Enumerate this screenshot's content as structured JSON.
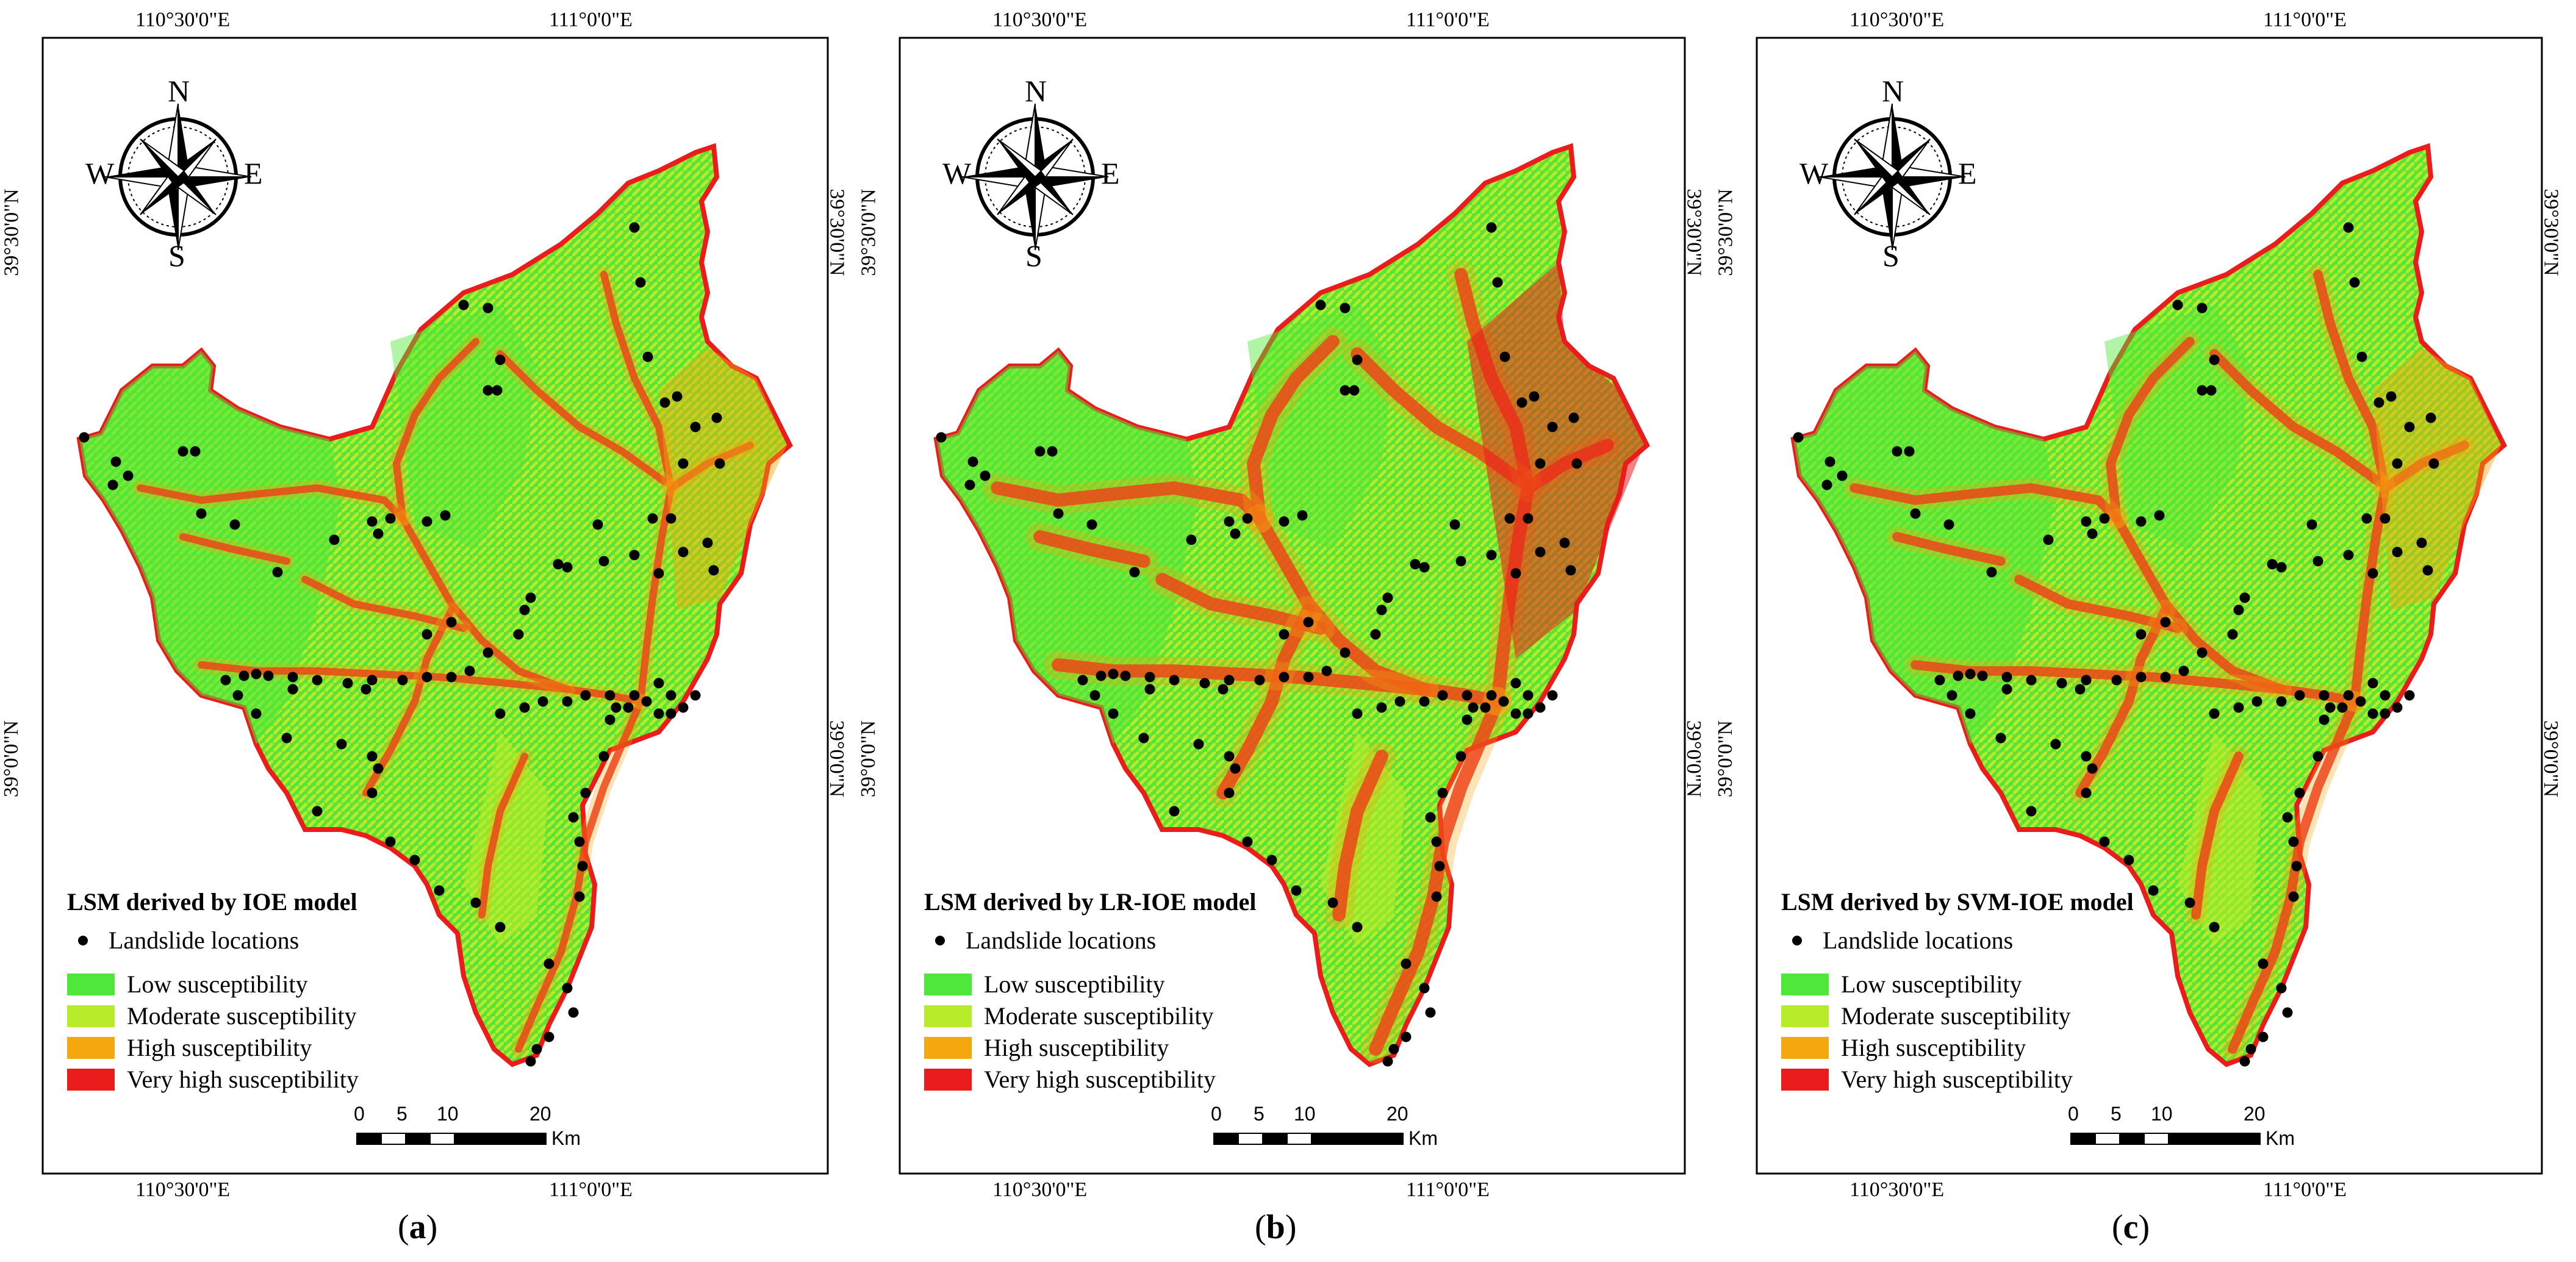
{
  "panels": [
    {
      "id": "a",
      "caption_letter": "a",
      "legend_title": "LSM derived by IOE model"
    },
    {
      "id": "b",
      "caption_letter": "b",
      "legend_title": "LSM derived by LR-IOE model"
    },
    {
      "id": "c",
      "caption_letter": "c",
      "legend_title": "SVM-IOE model",
      "legend_title_full": "LSM derived by SVM-IOE model"
    }
  ],
  "coords": {
    "top_left": "110°30'0\"E",
    "top_right": "111°0'0\"E",
    "bottom_left": "110°30'0\"E",
    "bottom_right": "111°0'0\"E",
    "lat_upper": "39°30'0\"N",
    "lat_lower": "39°0'0\"N"
  },
  "compass": {
    "n": "N",
    "s": "S",
    "e": "E",
    "w": "W"
  },
  "legend": {
    "points_label": "Landslide locations",
    "classes": [
      {
        "label": "Low susceptibility",
        "color": "#4fe83a"
      },
      {
        "label": "Moderate susceptibility",
        "color": "#b8ec2a"
      },
      {
        "label": "High susceptibility",
        "color": "#f5a70f"
      },
      {
        "label": "Very high susceptibility",
        "color": "#ea1c1c"
      }
    ]
  },
  "scale_bar": {
    "ticks": [
      "0",
      "5",
      "10",
      "20"
    ],
    "unit": "Km"
  },
  "caption_parens": [
    "(",
    ")"
  ]
}
